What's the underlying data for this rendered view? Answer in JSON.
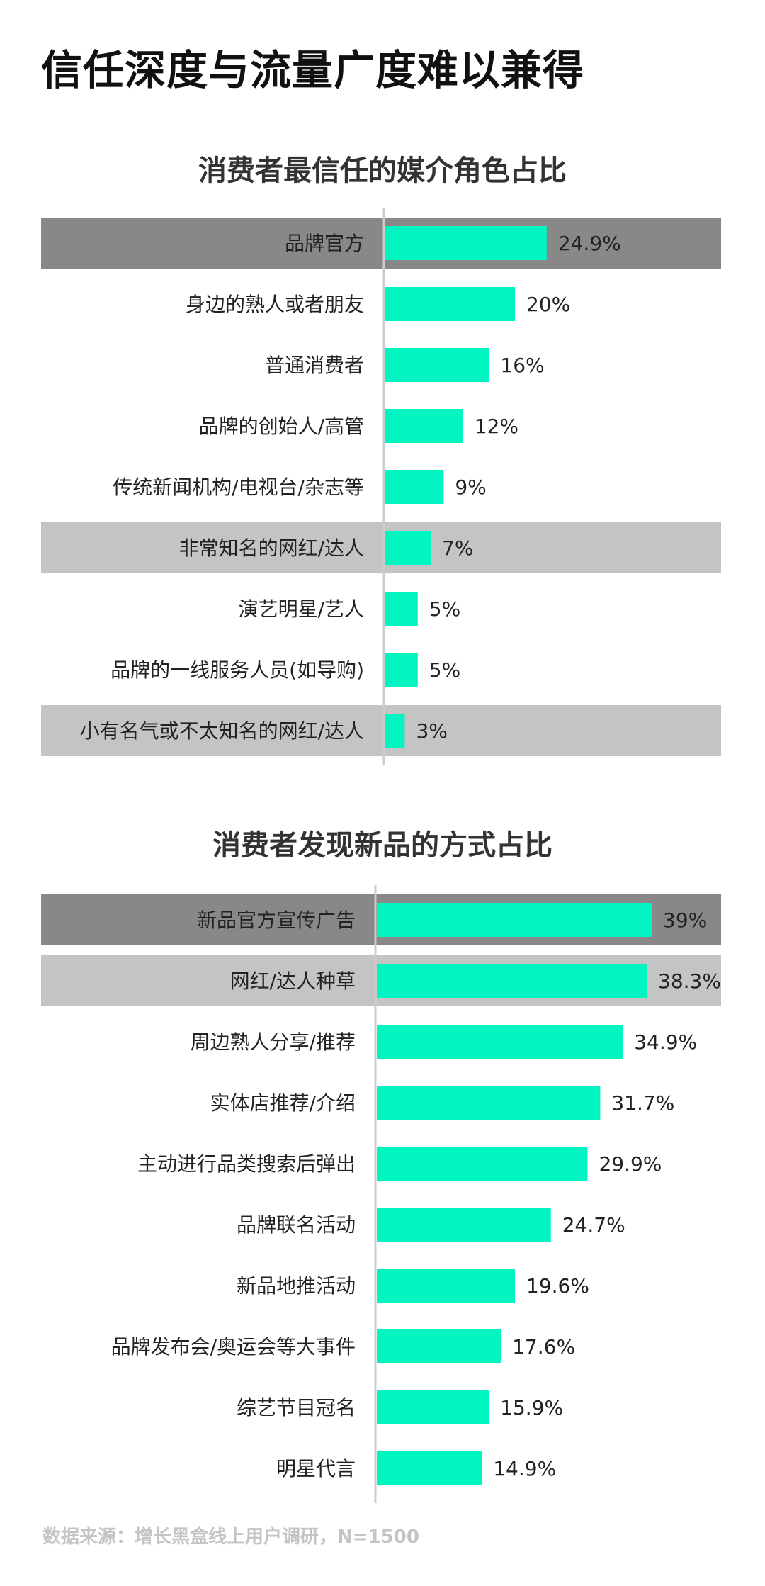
{
  "title": "信任深度与流量广度难以兼得",
  "colors": {
    "bar": "#00f5c0",
    "highlight_dark": "#888888",
    "highlight_light": "#c4c4c4",
    "axis": "#cccccc",
    "source_text": "#c4c4c4"
  },
  "chart_data": [
    {
      "type": "bar",
      "orientation": "horizontal",
      "title": "消费者最信任的媒介角色占比",
      "categories": [
        "品牌官方",
        "身边的熟人或者朋友",
        "普通消费者",
        "品牌的创始人/高管",
        "传统新闻机构/电视台/杂志等",
        "非常知名的网红/达人",
        "演艺明星/艺人",
        "品牌的一线服务人员(如导购)",
        "小有名气或不太知名的网红/达人"
      ],
      "values": [
        24.9,
        20,
        16,
        12,
        9,
        7,
        5,
        5,
        3
      ],
      "value_labels": [
        "24.9%",
        "20%",
        "16%",
        "12%",
        "9%",
        "7%",
        "5%",
        "5%",
        "3%"
      ],
      "highlights": [
        "dark",
        "none",
        "none",
        "none",
        "none",
        "light",
        "none",
        "none",
        "light"
      ],
      "xlim": [
        0,
        40
      ],
      "grid": false,
      "legend": "none"
    },
    {
      "type": "bar",
      "orientation": "horizontal",
      "title": "消费者发现新品的方式占比",
      "categories": [
        "新品官方宣传广告",
        "网红/达人种草",
        "周边熟人分享/推荐",
        "实体店推荐/介绍",
        "主动进行品类搜索后弹出",
        "品牌联名活动",
        "新品地推活动",
        "品牌发布会/奥运会等大事件",
        "综艺节目冠名",
        "明星代言"
      ],
      "values": [
        39,
        38.3,
        34.9,
        31.7,
        29.9,
        24.7,
        19.6,
        17.6,
        15.9,
        14.9
      ],
      "value_labels": [
        "39%",
        "38.3%",
        "34.9%",
        "31.7%",
        "29.9%",
        "24.7%",
        "19.6%",
        "17.6%",
        "15.9%",
        "14.9%"
      ],
      "highlights": [
        "dark",
        "light",
        "none",
        "none",
        "none",
        "none",
        "none",
        "none",
        "none",
        "none"
      ],
      "xlim": [
        0,
        39
      ],
      "grid": false,
      "legend": "none"
    }
  ],
  "source": "数据来源：增长黑盒线上用户调研，N=1500"
}
